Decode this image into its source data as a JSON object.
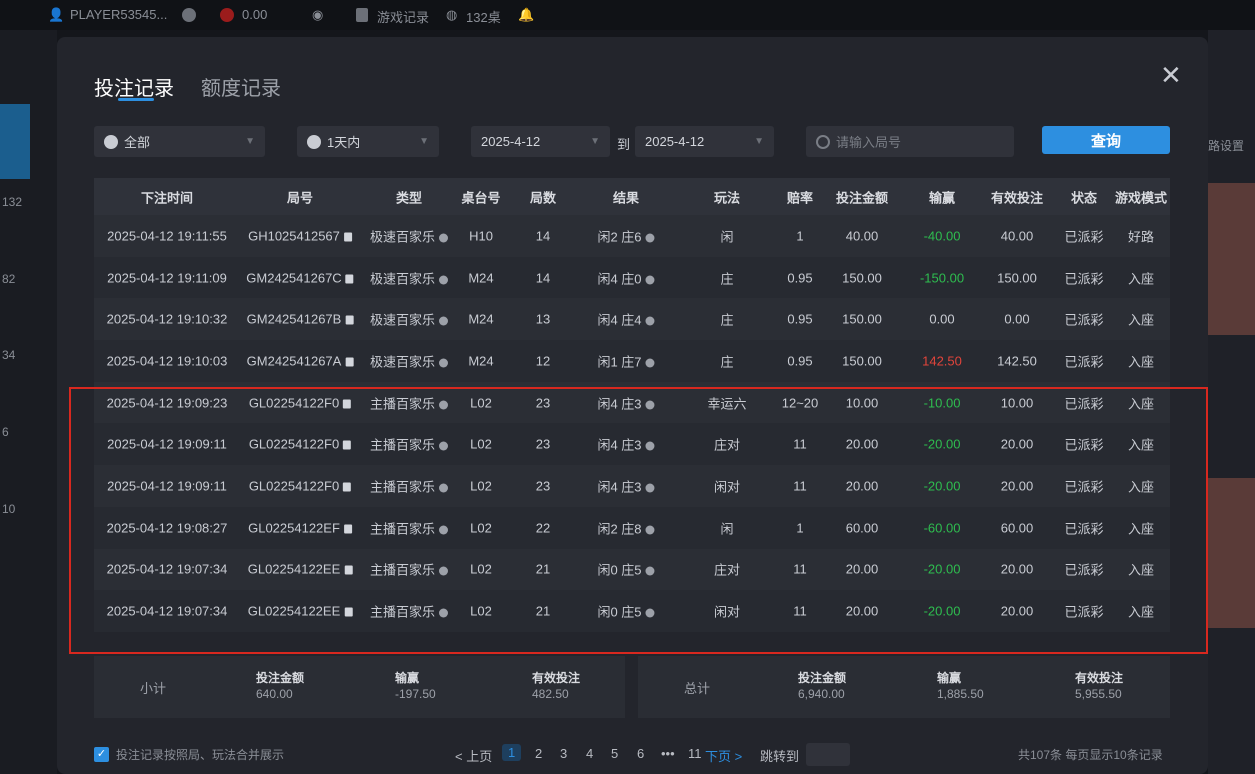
{
  "topbar": {
    "player": "PLAYER53545...",
    "balance": "0.00",
    "game_records": "游戏记录",
    "tables": "132桌",
    "right_text": "路设置"
  },
  "left_numbers": [
    "132",
    "82",
    "34",
    "6",
    "10"
  ],
  "tabs": [
    {
      "label": "投注记录",
      "active": true
    },
    {
      "label": "额度记录",
      "active": false
    }
  ],
  "filters": {
    "type": "全部",
    "period": "1天内",
    "date_from": "2025-4-12",
    "to_label": "到",
    "date_to": "2025-4-12",
    "search_placeholder": "请输入局号",
    "query_label": "查询"
  },
  "columns": [
    "下注时间",
    "局号",
    "类型",
    "桌台号",
    "局数",
    "结果",
    "玩法",
    "赔率",
    "投注金额",
    "输赢",
    "有效投注",
    "状态",
    "游戏模式"
  ],
  "rows": [
    [
      "2025-04-12 19:11:55",
      "GH1025412567",
      "极速百家乐",
      "H10",
      "14",
      "闲2 庄6",
      "闲",
      "1",
      "40.00",
      "-40.00",
      "40.00",
      "已派彩",
      "好路"
    ],
    [
      "2025-04-12 19:11:09",
      "GM242541267C",
      "极速百家乐",
      "M24",
      "14",
      "闲4 庄0",
      "庄",
      "0.95",
      "150.00",
      "-150.00",
      "150.00",
      "已派彩",
      "入座"
    ],
    [
      "2025-04-12 19:10:32",
      "GM242541267B",
      "极速百家乐",
      "M24",
      "13",
      "闲4 庄4",
      "庄",
      "0.95",
      "150.00",
      "0.00",
      "0.00",
      "已派彩",
      "入座"
    ],
    [
      "2025-04-12 19:10:03",
      "GM242541267A",
      "极速百家乐",
      "M24",
      "12",
      "闲1 庄7",
      "庄",
      "0.95",
      "150.00",
      "142.50",
      "142.50",
      "已派彩",
      "入座"
    ],
    [
      "2025-04-12 19:09:23",
      "GL02254122F0",
      "主播百家乐",
      "L02",
      "23",
      "闲4 庄3",
      "幸运六",
      "12~20",
      "10.00",
      "-10.00",
      "10.00",
      "已派彩",
      "入座"
    ],
    [
      "2025-04-12 19:09:11",
      "GL02254122F0",
      "主播百家乐",
      "L02",
      "23",
      "闲4 庄3",
      "庄对",
      "11",
      "20.00",
      "-20.00",
      "20.00",
      "已派彩",
      "入座"
    ],
    [
      "2025-04-12 19:09:11",
      "GL02254122F0",
      "主播百家乐",
      "L02",
      "23",
      "闲4 庄3",
      "闲对",
      "11",
      "20.00",
      "-20.00",
      "20.00",
      "已派彩",
      "入座"
    ],
    [
      "2025-04-12 19:08:27",
      "GL02254122EF",
      "主播百家乐",
      "L02",
      "22",
      "闲2 庄8",
      "闲",
      "1",
      "60.00",
      "-60.00",
      "60.00",
      "已派彩",
      "入座"
    ],
    [
      "2025-04-12 19:07:34",
      "GL02254122EE",
      "主播百家乐",
      "L02",
      "21",
      "闲0 庄5",
      "庄对",
      "11",
      "20.00",
      "-20.00",
      "20.00",
      "已派彩",
      "入座"
    ],
    [
      "2025-04-12 19:07:34",
      "GL02254122EE",
      "主播百家乐",
      "L02",
      "21",
      "闲0 庄5",
      "闲对",
      "11",
      "20.00",
      "-20.00",
      "20.00",
      "已派彩",
      "入座"
    ]
  ],
  "subtotal": {
    "label": "小计",
    "bet_label": "投注金额",
    "bet": "640.00",
    "win_label": "输赢",
    "win": "-197.50",
    "valid_label": "有效投注",
    "valid": "482.50"
  },
  "total": {
    "label": "总计",
    "bet_label": "投注金额",
    "bet": "6,940.00",
    "win_label": "输赢",
    "win": "1,885.50",
    "valid_label": "有效投注",
    "valid": "5,955.50"
  },
  "footer": {
    "merge_label": "投注记录按照局、玩法合并展示",
    "merge_checked": true,
    "prev": "< 上页",
    "pages": [
      "1",
      "2",
      "3",
      "4",
      "5",
      "6",
      "•••",
      "11"
    ],
    "current_page": "1",
    "next": "下页 >",
    "jump": "跳转到",
    "summary": "共107条  每页显示10条记录"
  },
  "colors": {
    "accent": "#2d8fe0",
    "loss": "#2ebd4f",
    "win": "#e2443b",
    "highlight": "#d8281f"
  }
}
